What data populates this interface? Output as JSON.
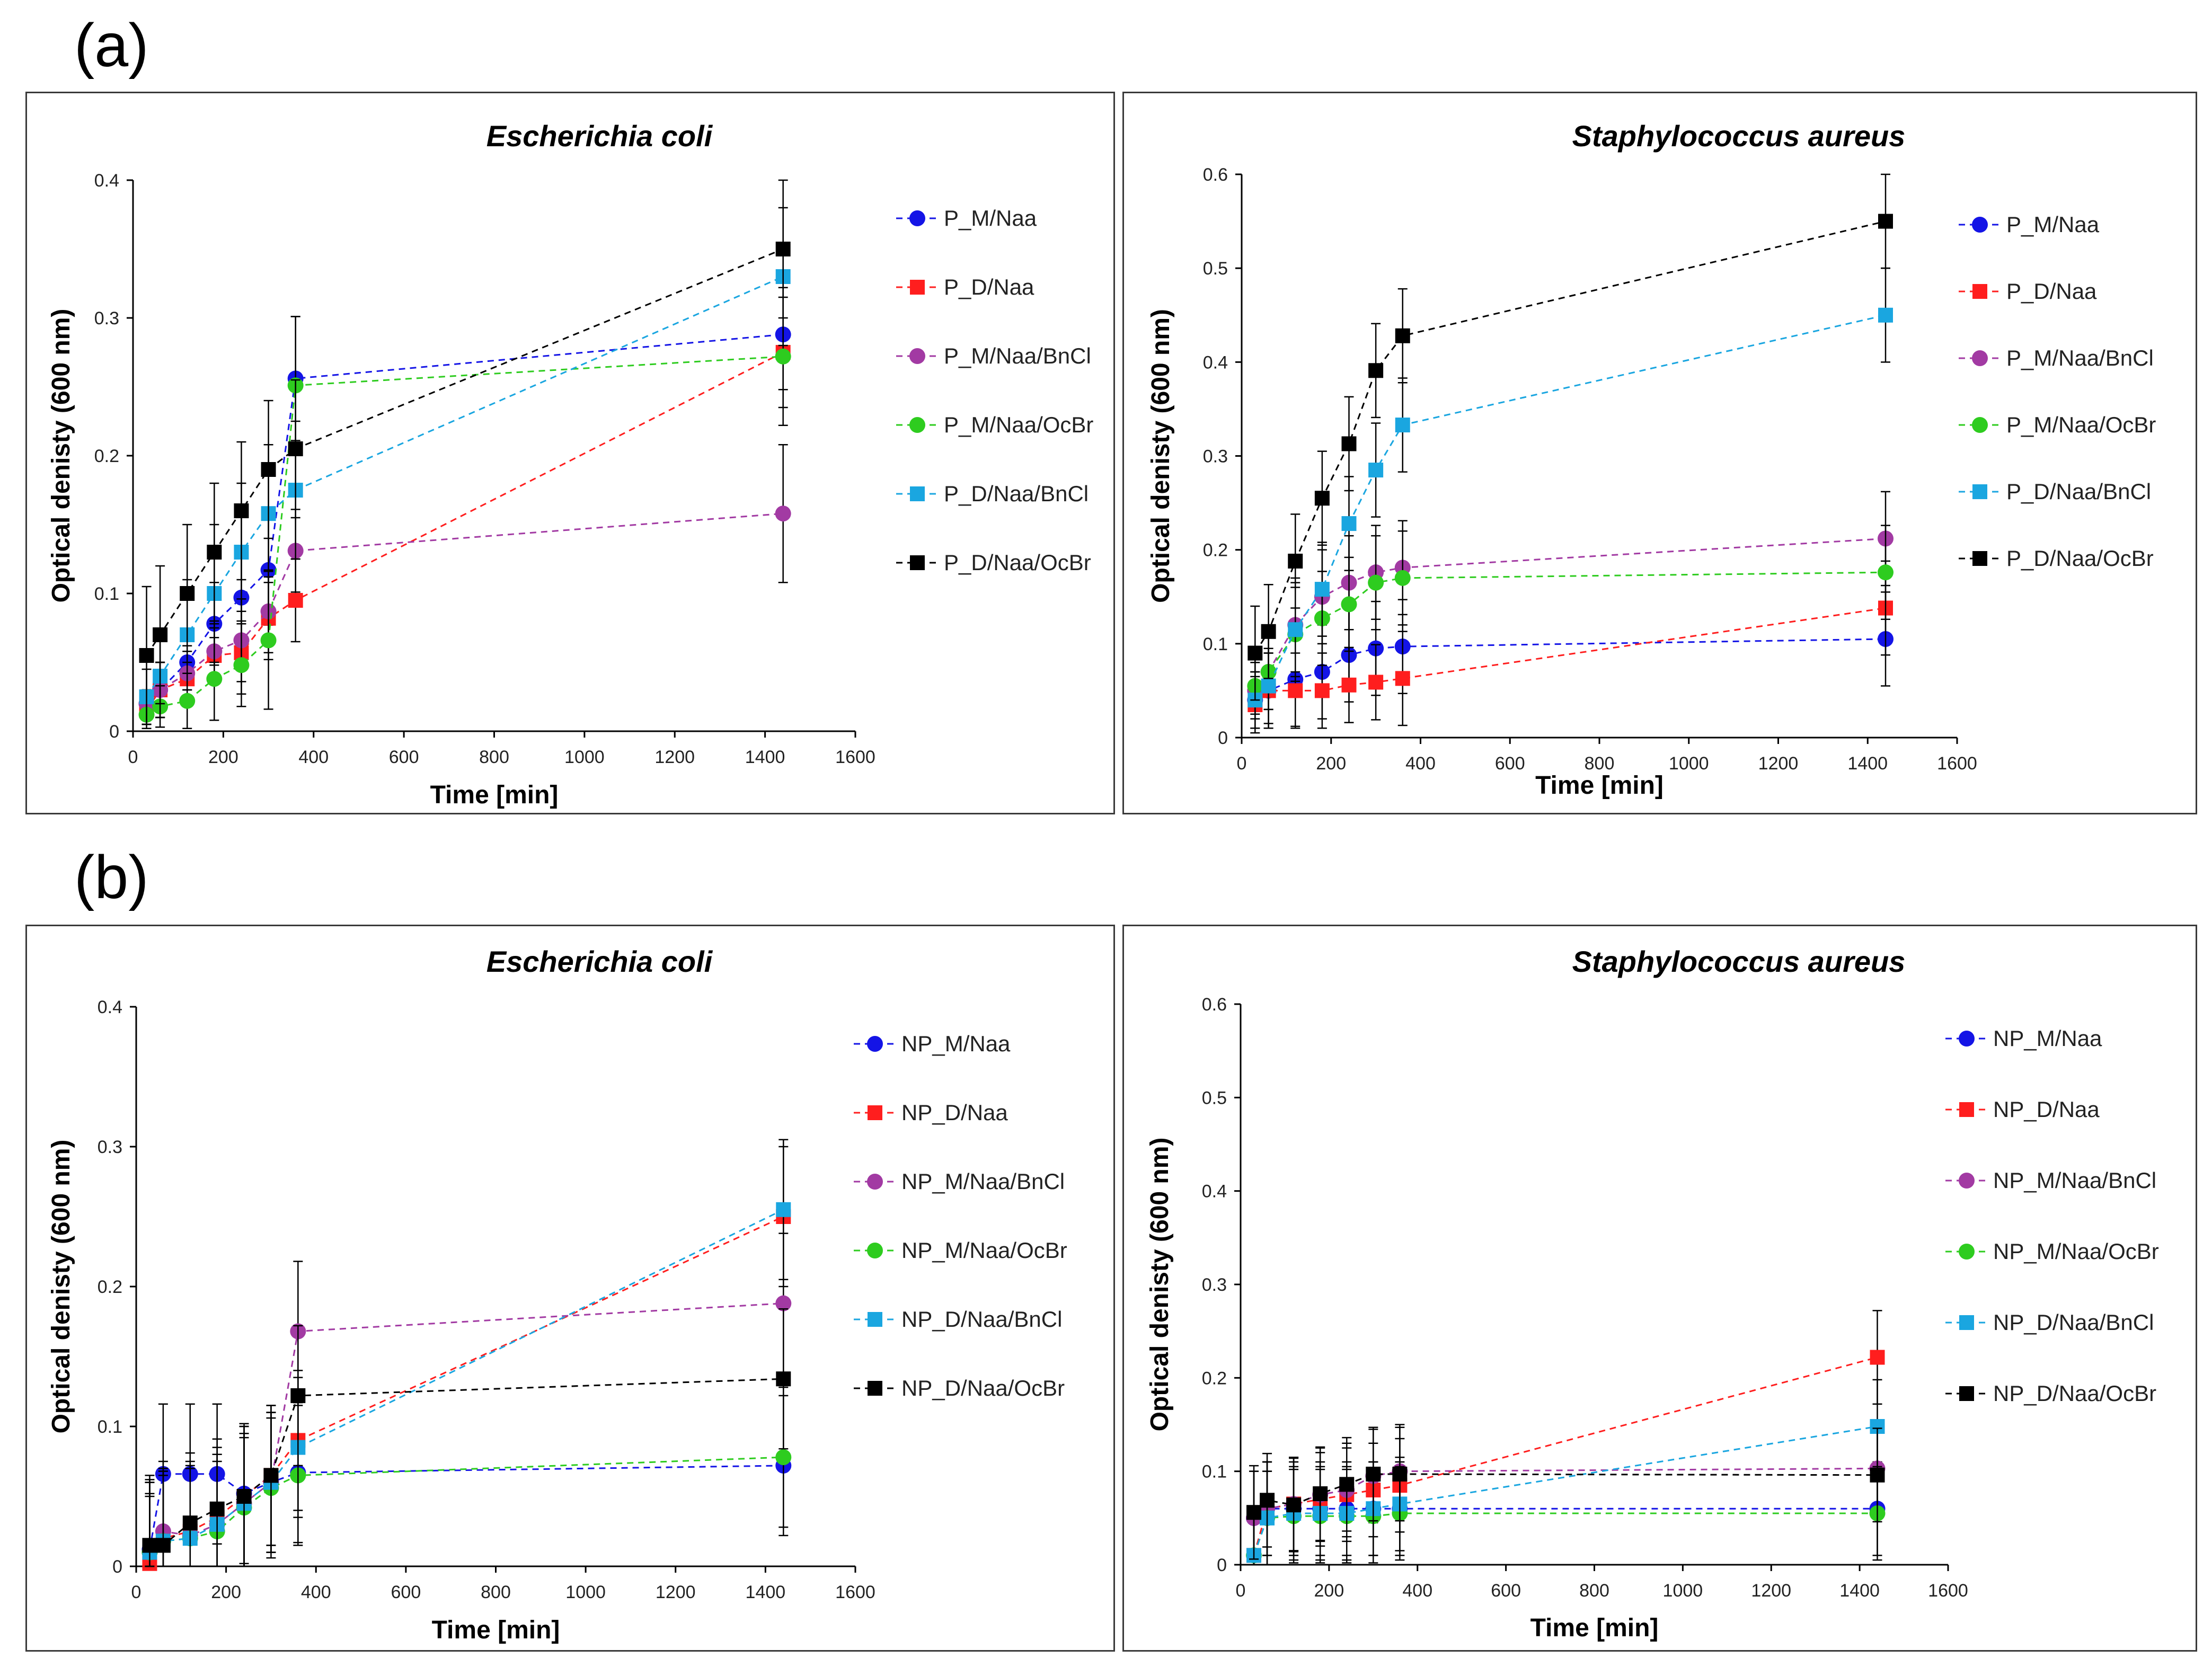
{
  "labels": {
    "a": "(a)",
    "b": "(b)"
  },
  "colors": {
    "blue": "#1414e6",
    "red": "#ff1e1e",
    "purple": "#a23aa3",
    "green": "#2ecc1f",
    "cyan": "#1aa6e0",
    "black": "#000000"
  },
  "chart_data": [
    {
      "type": "line",
      "panel": "a",
      "title": "Escherichia coli",
      "xlabel": "Time [min]",
      "ylabel": "Optical denisty (600 nm)",
      "xlim": [
        0,
        1600
      ],
      "xticks": [
        0,
        200,
        400,
        600,
        800,
        1000,
        1200,
        1400,
        1600
      ],
      "ylim": [
        0,
        0.4
      ],
      "yticks": [
        0,
        0.1,
        0.2,
        0.3,
        0.4
      ],
      "x": [
        30,
        60,
        120,
        180,
        240,
        300,
        360,
        1440
      ],
      "series": [
        {
          "name": "P_M/Naa",
          "color": "blue",
          "marker": "circle",
          "values": [
            0.02,
            0.03,
            0.05,
            0.078,
            0.097,
            0.117,
            0.256,
            0.288
          ],
          "err": [
            0.01,
            0.02,
            0.02,
            0.03,
            0.03,
            0.04,
            0.045,
            0.04
          ]
        },
        {
          "name": "P_D/Naa",
          "color": "red",
          "marker": "square",
          "values": [
            0.015,
            0.03,
            0.038,
            0.055,
            0.057,
            0.082,
            0.095,
            0.275
          ],
          "err": [
            0.01,
            0.02,
            0.02,
            0.02,
            0.03,
            0.03,
            0.03,
            0.04
          ]
        },
        {
          "name": "P_M/Naa/BnCl",
          "color": "purple",
          "marker": "circle",
          "values": [
            0.02,
            0.03,
            0.042,
            0.058,
            0.066,
            0.087,
            0.131,
            0.158
          ],
          "err": [
            0.01,
            0.02,
            0.02,
            0.02,
            0.03,
            0.03,
            0.03,
            0.05
          ]
        },
        {
          "name": "P_M/Naa/OcBr",
          "color": "green",
          "marker": "circle",
          "values": [
            0.012,
            0.018,
            0.022,
            0.038,
            0.048,
            0.066,
            0.251,
            0.272
          ],
          "err": [
            0.01,
            0.015,
            0.02,
            0.03,
            0.03,
            0.05,
            0.05,
            0.05
          ]
        },
        {
          "name": "P_D/Naa/BnCl",
          "color": "cyan",
          "marker": "square",
          "values": [
            0.025,
            0.04,
            0.07,
            0.1,
            0.13,
            0.158,
            0.175,
            0.33
          ],
          "err": [
            0.02,
            0.03,
            0.04,
            0.05,
            0.05,
            0.05,
            0.05,
            0.05
          ]
        },
        {
          "name": "P_D/Naa/OcBr",
          "color": "black",
          "marker": "square",
          "values": [
            0.055,
            0.07,
            0.1,
            0.13,
            0.16,
            0.19,
            0.205,
            0.35
          ],
          "err": [
            0.05,
            0.05,
            0.05,
            0.05,
            0.05,
            0.05,
            0.05,
            0.05
          ]
        }
      ]
    },
    {
      "type": "line",
      "panel": "a",
      "title": "Staphylococcus aureus",
      "xlabel": "Time [min]",
      "ylabel": "Optical denisty (600 nm)",
      "xlim": [
        0,
        1600
      ],
      "xticks": [
        0,
        200,
        400,
        600,
        800,
        1000,
        1200,
        1400,
        1600
      ],
      "ylim": [
        0,
        0.6
      ],
      "yticks": [
        0,
        0.1,
        0.2,
        0.3,
        0.4,
        0.5,
        0.6
      ],
      "x": [
        30,
        60,
        120,
        180,
        240,
        300,
        360,
        1440
      ],
      "series": [
        {
          "name": "P_M/Naa",
          "color": "blue",
          "marker": "circle",
          "values": [
            0.04,
            0.05,
            0.062,
            0.07,
            0.088,
            0.095,
            0.097,
            0.105
          ],
          "err": [
            0.03,
            0.04,
            0.05,
            0.05,
            0.05,
            0.05,
            0.05,
            0.05
          ]
        },
        {
          "name": "P_D/Naa",
          "color": "red",
          "marker": "square",
          "values": [
            0.035,
            0.05,
            0.05,
            0.05,
            0.056,
            0.059,
            0.063,
            0.138
          ],
          "err": [
            0.03,
            0.04,
            0.04,
            0.04,
            0.04,
            0.04,
            0.05,
            0.05
          ]
        },
        {
          "name": "P_M/Naa/BnCl",
          "color": "purple",
          "marker": "circle",
          "values": [
            0.05,
            0.07,
            0.12,
            0.15,
            0.165,
            0.176,
            0.181,
            0.212
          ],
          "err": [
            0.03,
            0.04,
            0.05,
            0.05,
            0.05,
            0.05,
            0.05,
            0.05
          ]
        },
        {
          "name": "P_M/Naa/OcBr",
          "color": "green",
          "marker": "circle",
          "values": [
            0.055,
            0.07,
            0.11,
            0.127,
            0.142,
            0.165,
            0.17,
            0.176
          ],
          "err": [
            0.03,
            0.04,
            0.05,
            0.05,
            0.05,
            0.05,
            0.05,
            0.05
          ]
        },
        {
          "name": "P_D/Naa/BnCl",
          "color": "cyan",
          "marker": "square",
          "values": [
            0.04,
            0.055,
            0.115,
            0.158,
            0.228,
            0.285,
            0.333,
            0.45
          ],
          "err": [
            0.03,
            0.04,
            0.05,
            0.05,
            0.05,
            0.05,
            0.05,
            0.05
          ]
        },
        {
          "name": "P_D/Naa/OcBr",
          "color": "black",
          "marker": "square",
          "values": [
            0.09,
            0.113,
            0.188,
            0.255,
            0.313,
            0.391,
            0.428,
            0.55
          ],
          "err": [
            0.05,
            0.05,
            0.05,
            0.05,
            0.05,
            0.05,
            0.05,
            0.05
          ]
        }
      ]
    },
    {
      "type": "line",
      "panel": "b",
      "title": "Escherichia coli",
      "xlabel": "Time [min]",
      "ylabel": "Optical denisty (600 nm)",
      "xlim": [
        0,
        1600
      ],
      "xticks": [
        0,
        200,
        400,
        600,
        800,
        1000,
        1200,
        1400,
        1600
      ],
      "ylim": [
        0,
        0.4
      ],
      "yticks": [
        0,
        0.1,
        0.2,
        0.3,
        0.4
      ],
      "x": [
        30,
        60,
        120,
        180,
        240,
        300,
        360,
        1440
      ],
      "series": [
        {
          "name": "NP_M/Naa",
          "color": "blue",
          "marker": "circle",
          "values": [
            0.012,
            0.066,
            0.066,
            0.066,
            0.052,
            0.06,
            0.067,
            0.072
          ],
          "err": [
            0.05,
            0.05,
            0.05,
            0.05,
            0.05,
            0.05,
            0.05,
            0.05
          ]
        },
        {
          "name": "NP_D/Naa",
          "color": "red",
          "marker": "square",
          "values": [
            0.002,
            0.02,
            0.025,
            0.035,
            0.05,
            0.065,
            0.09,
            0.25
          ],
          "err": [
            0.05,
            0.05,
            0.05,
            0.05,
            0.05,
            0.05,
            0.05,
            0.05
          ]
        },
        {
          "name": "NP_M/Naa/BnCl",
          "color": "purple",
          "marker": "circle",
          "values": [
            0.01,
            0.025,
            0.022,
            0.03,
            0.045,
            0.06,
            0.168,
            0.188
          ],
          "err": [
            0.05,
            0.05,
            0.05,
            0.05,
            0.05,
            0.05,
            0.05,
            0.05
          ]
        },
        {
          "name": "NP_M/Naa/OcBr",
          "color": "green",
          "marker": "circle",
          "values": [
            0.01,
            0.018,
            0.02,
            0.025,
            0.042,
            0.056,
            0.065,
            0.078
          ],
          "err": [
            0.04,
            0.05,
            0.05,
            0.05,
            0.05,
            0.05,
            0.05,
            0.05
          ]
        },
        {
          "name": "NP_D/Naa/BnCl",
          "color": "cyan",
          "marker": "square",
          "values": [
            0.01,
            0.018,
            0.02,
            0.03,
            0.045,
            0.06,
            0.085,
            0.255
          ],
          "err": [
            0.05,
            0.05,
            0.05,
            0.05,
            0.05,
            0.05,
            0.05,
            0.05
          ]
        },
        {
          "name": "NP_D/Naa/OcBr",
          "color": "black",
          "marker": "square",
          "values": [
            0.015,
            0.015,
            0.031,
            0.041,
            0.05,
            0.065,
            0.122,
            0.134
          ],
          "err": [
            0.05,
            0.05,
            0.05,
            0.05,
            0.05,
            0.05,
            0.05,
            0.05
          ]
        }
      ]
    },
    {
      "type": "line",
      "panel": "b",
      "title": "Staphylococcus aureus",
      "xlabel": "Time [min]",
      "ylabel": "Optical denisty (600 nm)",
      "xlim": [
        0,
        1600
      ],
      "xticks": [
        0,
        200,
        400,
        600,
        800,
        1000,
        1200,
        1400,
        1600
      ],
      "ylim": [
        0,
        0.6
      ],
      "yticks": [
        0,
        0.1,
        0.2,
        0.3,
        0.4,
        0.5,
        0.6
      ],
      "x": [
        30,
        60,
        120,
        180,
        240,
        300,
        360,
        1440
      ],
      "series": [
        {
          "name": "NP_M/Naa",
          "color": "blue",
          "marker": "circle",
          "values": [
            0.05,
            0.06,
            0.06,
            0.06,
            0.06,
            0.06,
            0.06,
            0.06
          ],
          "err": [
            0.05,
            0.05,
            0.05,
            0.05,
            0.05,
            0.05,
            0.05,
            0.05
          ]
        },
        {
          "name": "NP_D/Naa",
          "color": "red",
          "marker": "square",
          "values": [
            0.01,
            0.06,
            0.065,
            0.07,
            0.075,
            0.08,
            0.085,
            0.222
          ],
          "err": [
            0.05,
            0.05,
            0.05,
            0.05,
            0.05,
            0.05,
            0.05,
            0.05
          ]
        },
        {
          "name": "NP_M/Naa/BnCl",
          "color": "purple",
          "marker": "circle",
          "values": [
            0.05,
            0.06,
            0.065,
            0.075,
            0.08,
            0.095,
            0.1,
            0.103
          ],
          "err": [
            0.05,
            0.05,
            0.05,
            0.05,
            0.05,
            0.05,
            0.05,
            0.05
          ]
        },
        {
          "name": "NP_M/Naa/OcBr",
          "color": "green",
          "marker": "circle",
          "values": [
            0.01,
            0.05,
            0.052,
            0.052,
            0.052,
            0.052,
            0.055,
            0.055
          ],
          "err": [
            0.05,
            0.05,
            0.05,
            0.05,
            0.05,
            0.05,
            0.05,
            0.05
          ]
        },
        {
          "name": "NP_D/Naa/BnCl",
          "color": "cyan",
          "marker": "square",
          "values": [
            0.01,
            0.05,
            0.055,
            0.055,
            0.055,
            0.06,
            0.065,
            0.148
          ],
          "err": [
            0.05,
            0.05,
            0.05,
            0.05,
            0.05,
            0.05,
            0.05,
            0.05
          ]
        },
        {
          "name": "NP_D/Naa/OcBr",
          "color": "black",
          "marker": "square",
          "values": [
            0.056,
            0.069,
            0.064,
            0.076,
            0.086,
            0.097,
            0.097,
            0.096
          ],
          "err": [
            0.05,
            0.05,
            0.05,
            0.05,
            0.05,
            0.05,
            0.05,
            0.05
          ]
        }
      ]
    }
  ]
}
